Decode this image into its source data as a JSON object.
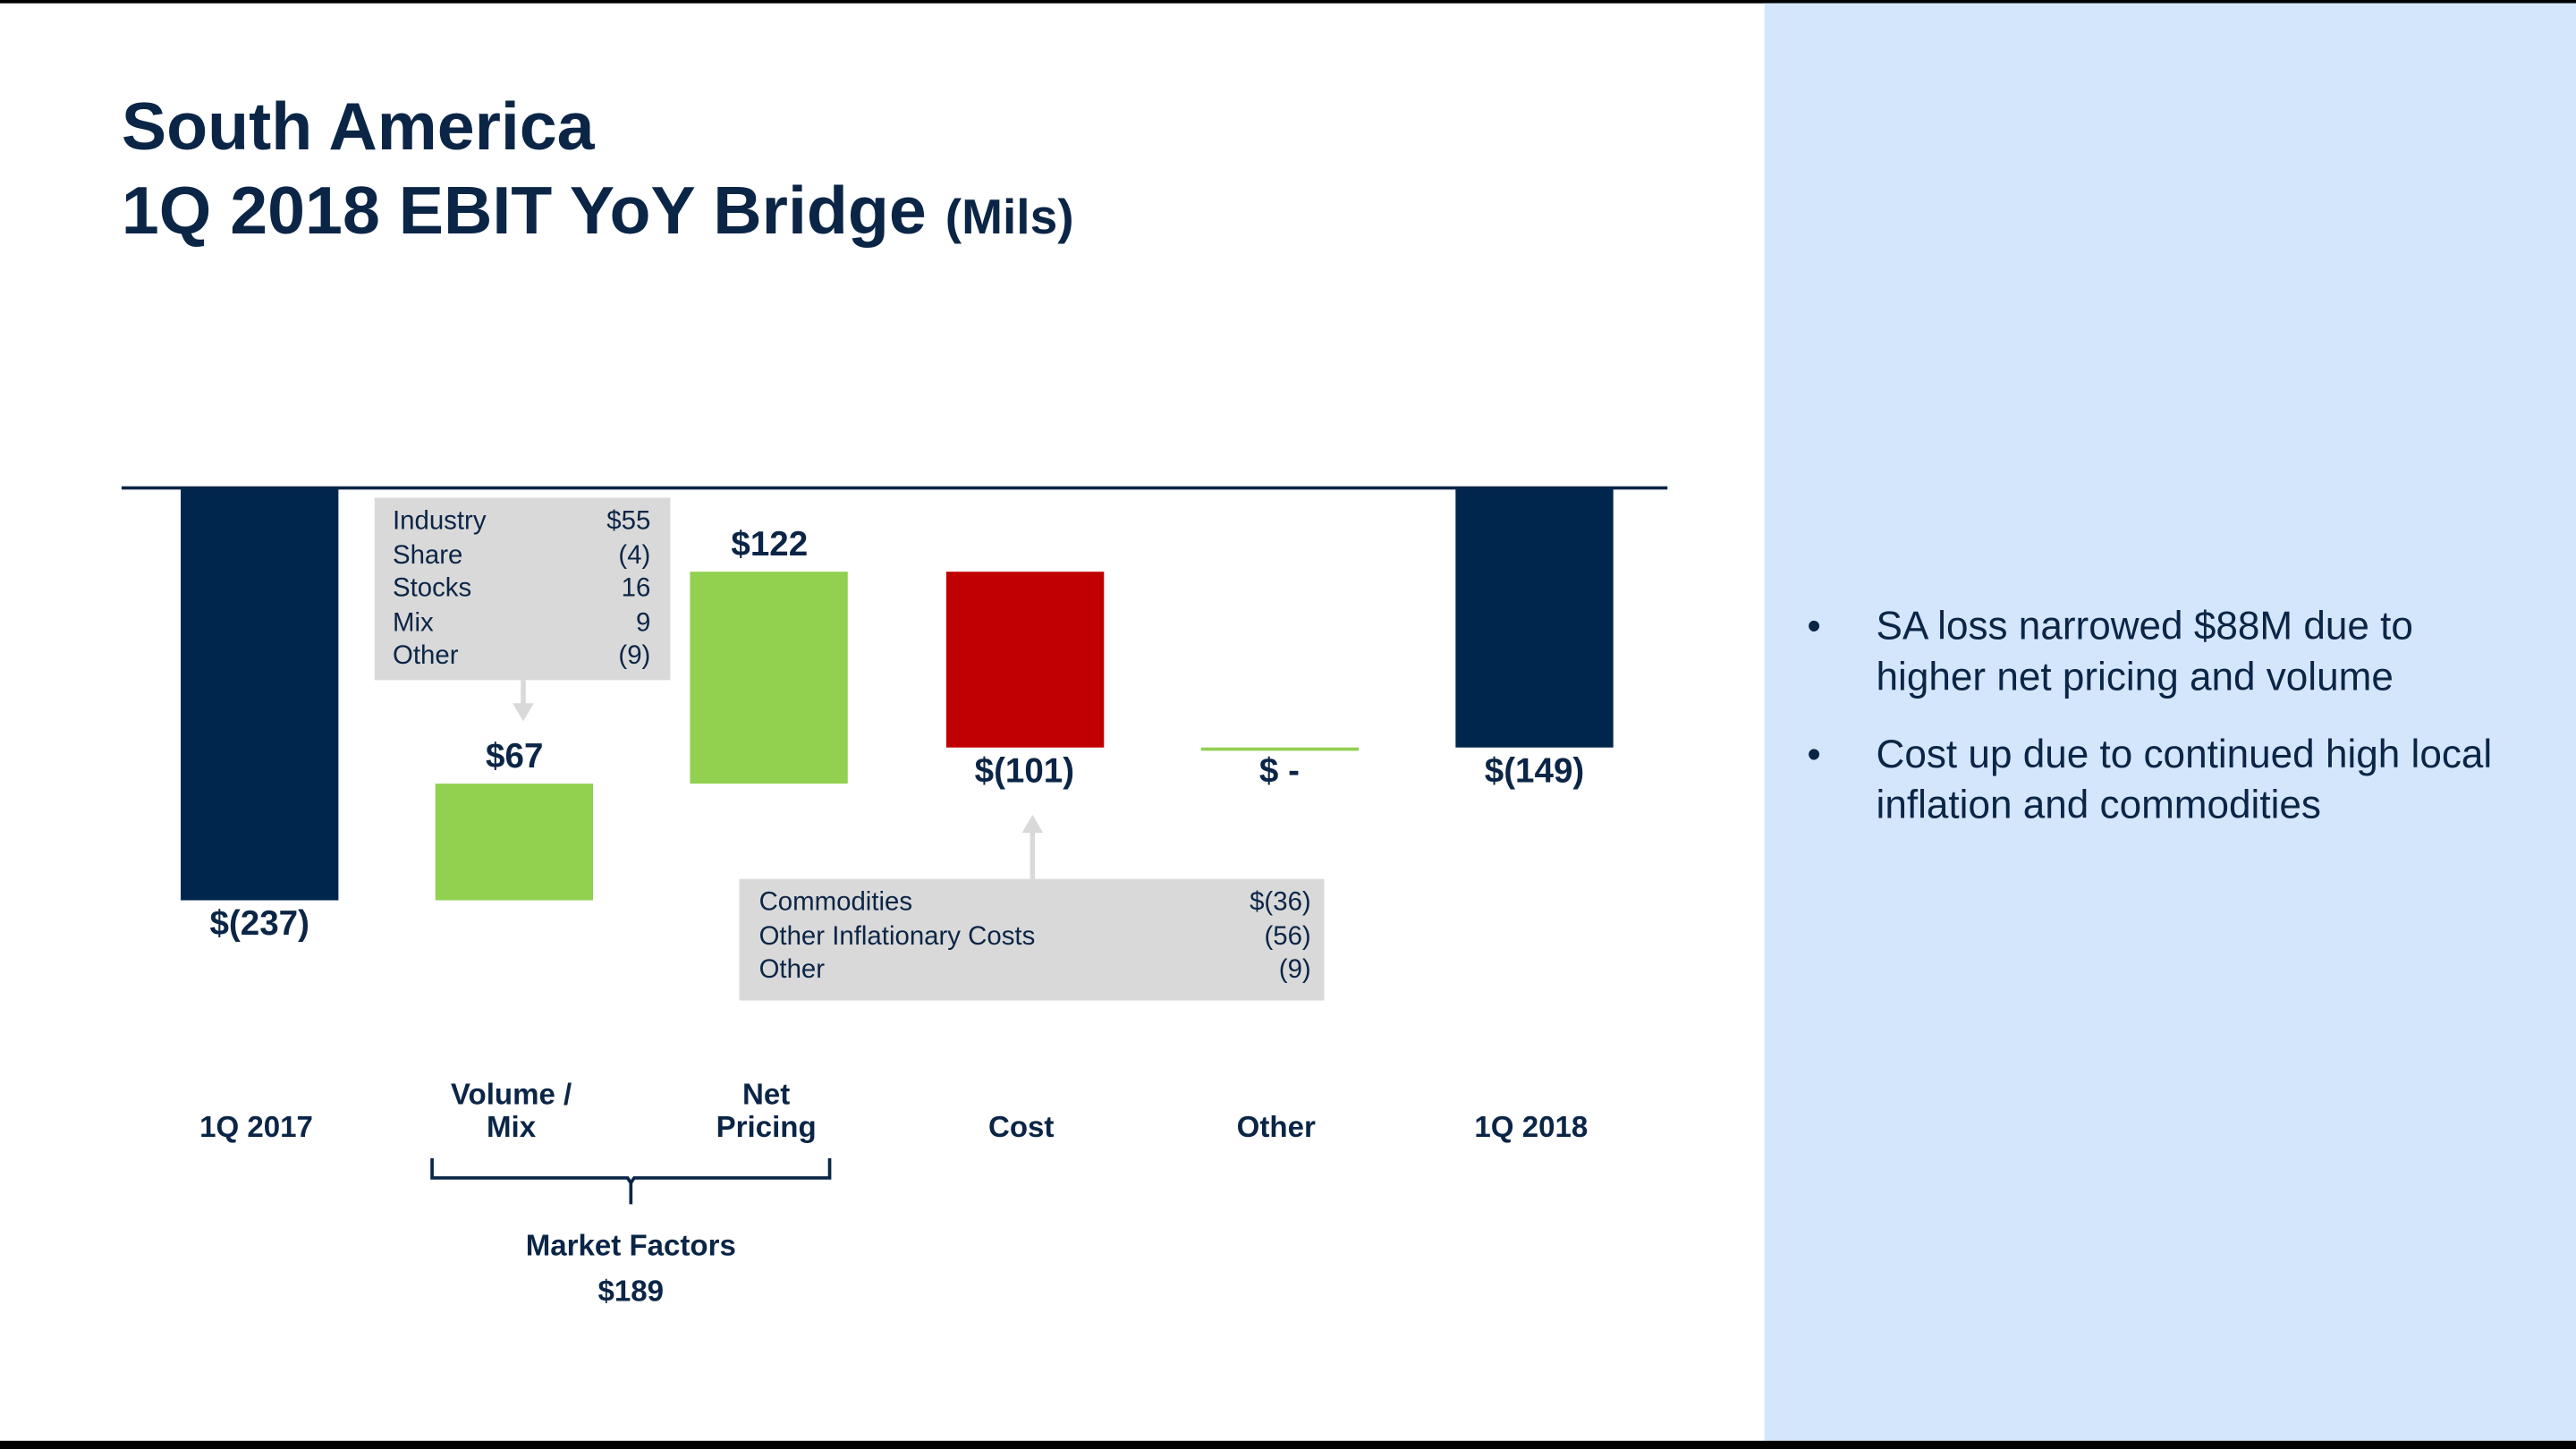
{
  "title": {
    "line1": "South America",
    "line2": "1Q 2018 EBIT YoY Bridge",
    "unit": "(Mils)"
  },
  "colors": {
    "navy": "#00264d",
    "green": "#92d050",
    "red": "#c00000",
    "panel": "#d4e6fb",
    "callout": "#d9d9d9",
    "text": "#0b2546"
  },
  "chart_data": {
    "type": "waterfall",
    "categories": [
      "1Q 2017",
      "Volume / Mix",
      "Net Pricing",
      "Cost",
      "Other",
      "1Q 2018"
    ],
    "values": [
      -237,
      67,
      122,
      -101,
      0,
      -149
    ],
    "kinds": [
      "total",
      "delta",
      "delta",
      "delta",
      "delta",
      "total"
    ],
    "data_labels": [
      "$(237)",
      "$67",
      "$122",
      "$(101)",
      "$ -",
      "$(149)"
    ],
    "bar_colors": [
      "#00264d",
      "#92d050",
      "#92d050",
      "#c00000",
      "#92d050",
      "#00264d"
    ],
    "ylim": [
      -237,
      0
    ]
  },
  "category_lines": [
    [
      "",
      "1Q 2017"
    ],
    [
      "Volume /",
      "Mix"
    ],
    [
      "Net",
      "Pricing"
    ],
    [
      "",
      "Cost"
    ],
    [
      "",
      "Other"
    ],
    [
      "",
      "1Q 2018"
    ]
  ],
  "volume_callout": [
    {
      "label": "Industry",
      "value": "$55"
    },
    {
      "label": "Share",
      "value": "(4)"
    },
    {
      "label": "Stocks",
      "value": "16"
    },
    {
      "label": "Mix",
      "value": "9"
    },
    {
      "label": "Other",
      "value": "(9)"
    }
  ],
  "cost_callout": [
    {
      "label": "Commodities",
      "value": "$(36)"
    },
    {
      "label": "Other Inflationary Costs",
      "value": "(56)"
    },
    {
      "label": "Other",
      "value": "(9)"
    }
  ],
  "market_factors": {
    "label": "Market Factors",
    "value": "$189"
  },
  "bullets": [
    "SA loss narrowed $88M due to higher net pricing and volume",
    "Cost up due to continued high local inflation and commodities"
  ]
}
